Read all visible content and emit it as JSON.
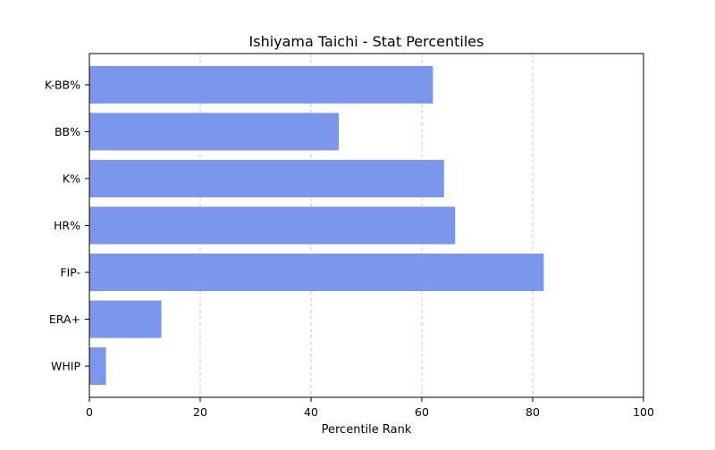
{
  "chart_data": {
    "type": "bar",
    "orientation": "horizontal",
    "title": "Ishiyama Taichi - Stat Percentiles",
    "xlabel": "Percentile Rank",
    "ylabel": "",
    "xlim": [
      0,
      100
    ],
    "xticks": [
      "0",
      "20",
      "40",
      "60",
      "80",
      "100"
    ],
    "xtick_values": [
      0,
      20,
      40,
      60,
      80,
      100
    ],
    "categories": [
      "K-BB%",
      "BB%",
      "K%",
      "HR%",
      "FIP-",
      "ERA+",
      "WHIP"
    ],
    "values": [
      62,
      45,
      64,
      66,
      82,
      13,
      3
    ],
    "grid": "x-dashed",
    "bar_color": "#7b96ea",
    "grid_color": "#c8c8c8",
    "legend": "none"
  }
}
